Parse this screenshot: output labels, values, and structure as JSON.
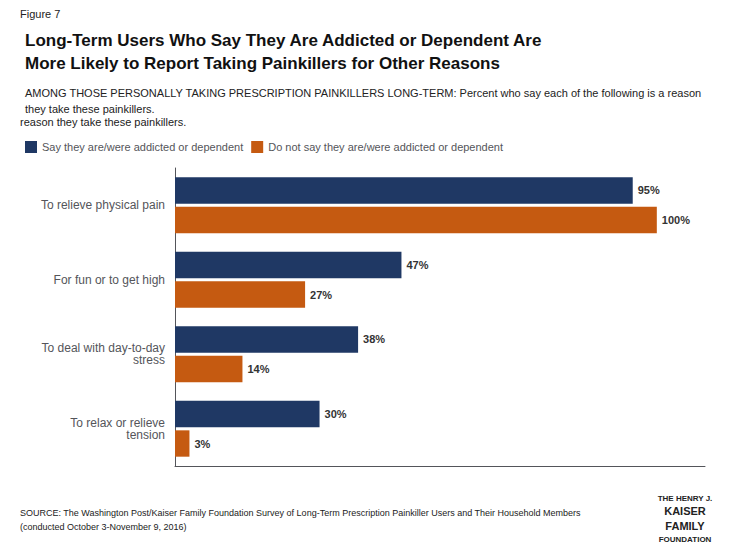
{
  "chart_data": {
    "type": "bar",
    "orientation": "horizontal",
    "title": "Long-Term Users Who Say They Are Addicted or Dependent Are\nMore Likely to Report Taking Painkillers for Other Reasons",
    "subtitle": "AMONG THOSE PERSONALLY TAKING PRESCRIPTION PAINKILLERS LONG-TERM: Percent who say each of the following is a reason they take these painkillers.",
    "annotations": [
      "Figure 7",
      "reason they take these painkillers.",
      "SOURCE: The Washington Post/Kaiser Family Foundation Survey of Long-Term Prescription Painkiller Users and Their Household Members",
      "(conducted October 3-November 9, 2016)",
      "THE HENRY J.",
      "KAISER",
      "FAMILY",
      "FOUNDATION"
    ],
    "categories": [
      "To relieve physical pain",
      "For fun or to get high",
      "To deal with day-to-day\nstress",
      "To relax or relieve\ntension"
    ],
    "series": [
      {
        "name": "Say they are/were addicted or dependent",
        "color": "#1F3864",
        "values": [
          95,
          47,
          38,
          30
        ],
        "value_labels": [
          "95%",
          "47%",
          "38%",
          "30%"
        ]
      },
      {
        "name": "Do not say they are/were addicted or dependent",
        "color": "#C55A11",
        "values": [
          100,
          27,
          14,
          3
        ],
        "value_labels": [
          "100%",
          "27%",
          "14%",
          "3%"
        ]
      }
    ],
    "xlim": [
      0,
      110
    ],
    "data_labels": true,
    "tick_labels": "y",
    "grid": false,
    "legend": "top left"
  }
}
